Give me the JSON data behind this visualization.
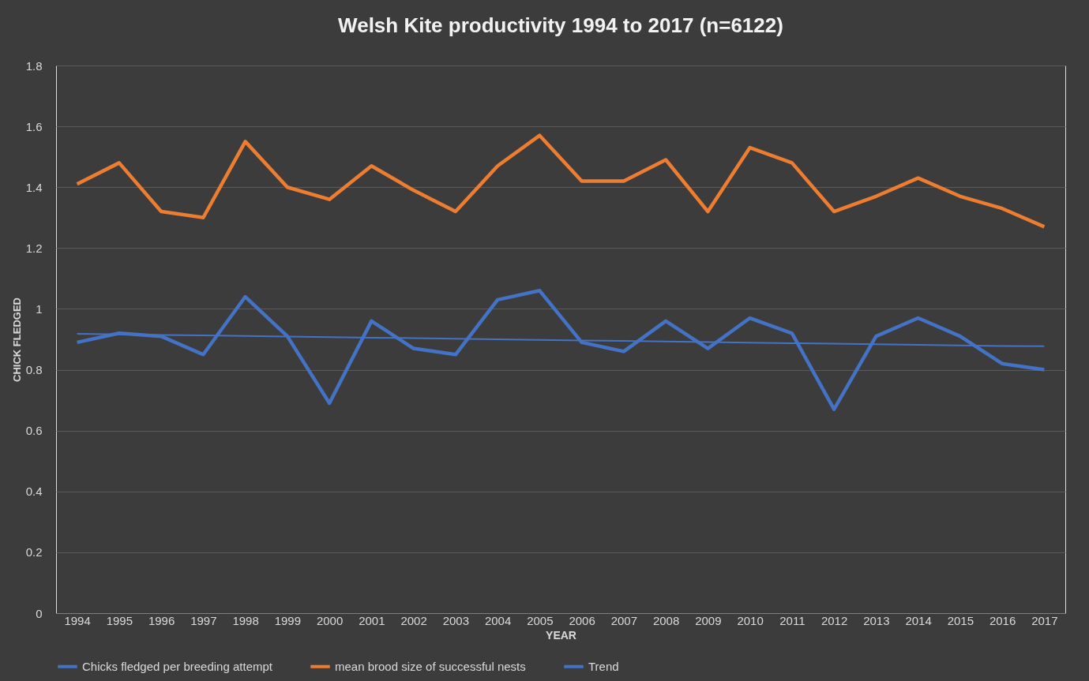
{
  "chart_data": {
    "type": "line",
    "title": "Welsh Kite productivity  1994 to 2017 (n=6122)",
    "xlabel": "YEAR",
    "ylabel": "CHICK FLEDGED",
    "categories": [
      "1994",
      "1995",
      "1996",
      "1997",
      "1998",
      "1999",
      "2000",
      "2001",
      "2002",
      "2003",
      "2004",
      "2005",
      "2006",
      "2007",
      "2008",
      "2009",
      "2010",
      "2011",
      "2012",
      "2013",
      "2014",
      "2015",
      "2016",
      "2017"
    ],
    "series": [
      {
        "name": "Chicks fledged per breeding attempt",
        "color": "#4472c4",
        "values": [
          0.89,
          0.92,
          0.91,
          0.85,
          1.04,
          0.91,
          0.69,
          0.96,
          0.87,
          0.85,
          1.03,
          1.06,
          0.89,
          0.86,
          0.96,
          0.87,
          0.97,
          0.92,
          0.67,
          0.91,
          0.97,
          0.91,
          0.82,
          0.8
        ]
      },
      {
        "name": "mean brood size of successful nests",
        "color": "#ed7d31",
        "values": [
          1.41,
          1.48,
          1.32,
          1.3,
          1.55,
          1.4,
          1.36,
          1.47,
          1.39,
          1.32,
          1.47,
          1.57,
          1.42,
          1.42,
          1.49,
          1.32,
          1.53,
          1.48,
          1.32,
          1.37,
          1.43,
          1.37,
          1.33,
          1.27
        ]
      },
      {
        "name": "Trend",
        "color": "#4472c4",
        "type": "line",
        "values": [
          0.918,
          0.916,
          0.914,
          0.913,
          0.911,
          0.909,
          0.907,
          0.905,
          0.904,
          0.902,
          0.9,
          0.898,
          0.896,
          0.895,
          0.893,
          0.891,
          0.889,
          0.887,
          0.886,
          0.884,
          0.882,
          0.88,
          0.878,
          0.877
        ]
      }
    ],
    "ylim": [
      0,
      1.8
    ],
    "yticks": [
      0,
      0.2,
      0.4,
      0.6,
      0.8,
      1,
      1.2,
      1.4,
      1.6,
      1.8
    ],
    "grid": "y",
    "legend": "bottom",
    "marker": "none",
    "line_style": "solid"
  }
}
